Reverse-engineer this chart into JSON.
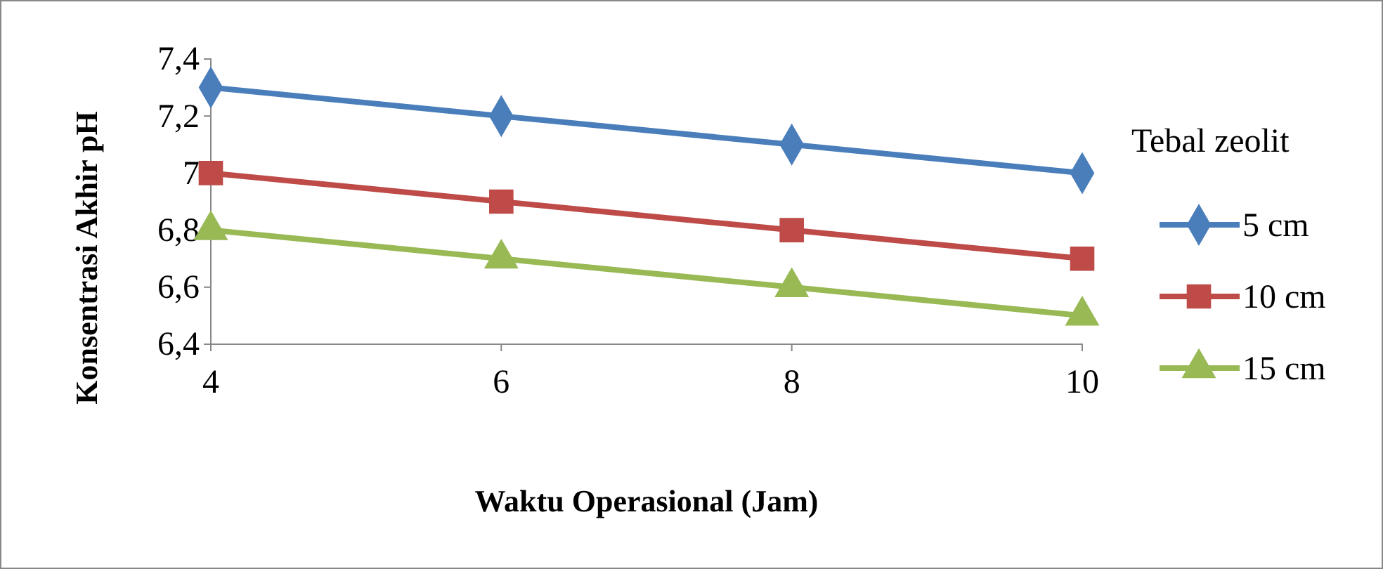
{
  "chart_data": {
    "type": "line",
    "xlabel": "Waktu Operasional (Jam)",
    "ylabel": "Konsentrasi Akhir pH",
    "legend_title": "Tebal zeolit",
    "legend": "right",
    "grid": false,
    "x": [
      4,
      6,
      8,
      10
    ],
    "xlim": [
      4,
      10
    ],
    "xticks": [
      4,
      6,
      8,
      10
    ],
    "ylim": [
      6.4,
      7.4
    ],
    "yticks": [
      {
        "value": 6.4,
        "label": "6,4"
      },
      {
        "value": 6.6,
        "label": "6,6"
      },
      {
        "value": 6.8,
        "label": "6,8"
      },
      {
        "value": 7,
        "label": "7"
      },
      {
        "value": 7.2,
        "label": "7,2"
      },
      {
        "value": 7.4,
        "label": "7,4"
      }
    ],
    "series": [
      {
        "name": "5 cm",
        "color": "#4a7ebb",
        "marker": "diamond",
        "values": [
          7.3,
          7.2,
          7.1,
          7.0
        ]
      },
      {
        "name": "10 cm",
        "color": "#be4b48",
        "marker": "square",
        "values": [
          7.0,
          6.9,
          6.8,
          6.7
        ]
      },
      {
        "name": "15 cm",
        "color": "#98b954",
        "marker": "triangle",
        "values": [
          6.8,
          6.7,
          6.6,
          6.5
        ]
      }
    ]
  }
}
